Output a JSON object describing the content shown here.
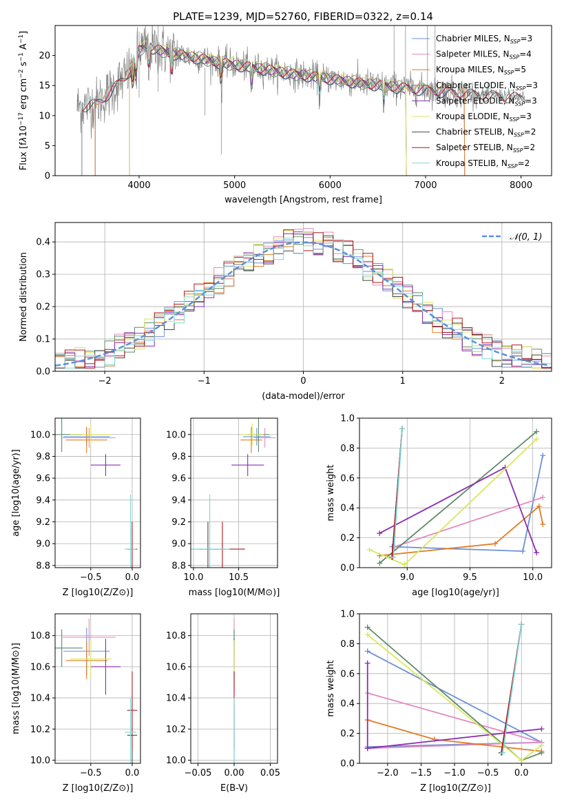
{
  "figure": {
    "title": "PLATE=1239, MJD=52760, FIBERID=0322, z=0.14"
  },
  "colors": {
    "Chabrier MILES": "#6a8fd8",
    "Salpeter MILES": "#e08abf",
    "Kroupa MILES": "#e07b20",
    "Chabrier ELODIE": "#5e8a66",
    "Salpeter ELODIE": "#8a2bb0",
    "Kroupa ELODIE": "#d8e85a",
    "Chabrier STELIB": "#444444",
    "Salpeter STELIB": "#b01818",
    "Kroupa STELIB": "#7fd6d6",
    "data": "#7f7f7f"
  },
  "chart_data": [
    {
      "id": "spectrum",
      "type": "line",
      "title": "",
      "xlabel": "wavelength [Angstrom, rest frame]",
      "ylabel": "Flux [f_λ 10^-17 erg cm^-2 s^-1 A^-1]",
      "xlim": [
        3120,
        8320
      ],
      "ylim": [
        0,
        25
      ],
      "xticks": [
        4000,
        5000,
        6000,
        7000,
        8000
      ],
      "yticks": [
        0,
        5,
        10,
        15,
        20
      ],
      "grid": false,
      "legend_position": "top-right",
      "legend": [
        {
          "name": "Chabrier MILES",
          "nssp": "3"
        },
        {
          "name": "Salpeter MILES",
          "nssp": "4"
        },
        {
          "name": "Kroupa MILES",
          "nssp": "5"
        },
        {
          "name": "Chabrier ELODIE",
          "nssp": "3"
        },
        {
          "name": "Salpeter ELODIE",
          "nssp": "3"
        },
        {
          "name": "Kroupa ELODIE",
          "nssp": "3"
        },
        {
          "name": "Chabrier STELIB",
          "nssp": "2"
        },
        {
          "name": "Salpeter STELIB",
          "nssp": "2"
        },
        {
          "name": "Kroupa STELIB",
          "nssp": "2"
        }
      ],
      "continuum": {
        "x": [
          3350,
          3550,
          3700,
          3850,
          3950,
          4000,
          4100,
          4300,
          4500,
          4800,
          5000,
          5300,
          5600,
          6000,
          6400,
          6800,
          7200,
          7500,
          7800,
          8000
        ],
        "y": [
          11.5,
          12.0,
          14.0,
          16.5,
          18.5,
          21.0,
          21.5,
          20.5,
          20.0,
          19.0,
          18.5,
          17.8,
          17.0,
          16.2,
          15.3,
          14.6,
          14.0,
          13.6,
          13.3,
          13.0
        ]
      },
      "model_cutoffs": [
        {
          "name": "Chabrier MILES",
          "range": [
            3540,
            7410
          ]
        },
        {
          "name": "Salpeter MILES",
          "range": [
            3540,
            7410
          ]
        },
        {
          "name": "Kroupa MILES",
          "range": [
            3540,
            7410
          ]
        },
        {
          "name": "Chabrier ELODIE",
          "range": [
            3900,
            6800
          ]
        },
        {
          "name": "Salpeter ELODIE",
          "range": [
            3900,
            6800
          ]
        },
        {
          "name": "Kroupa ELODIE",
          "range": [
            3900,
            6800
          ]
        },
        {
          "name": "Chabrier STELIB",
          "range": [
            3400,
            8050
          ]
        },
        {
          "name": "Salpeter STELIB",
          "range": [
            3400,
            8050
          ]
        },
        {
          "name": "Kroupa STELIB",
          "range": [
            3400,
            8050
          ]
        }
      ]
    },
    {
      "id": "residuals",
      "type": "line",
      "xlabel": "(data-model)/error",
      "ylabel": "Normed distribution",
      "xlim": [
        -2.5,
        2.5
      ],
      "ylim": [
        0,
        0.46
      ],
      "xticks": [
        -2,
        -1,
        0,
        1,
        2
      ],
      "yticks": [
        0.0,
        0.1,
        0.2,
        0.3,
        0.4
      ],
      "grid": true,
      "legend_position": "top-right",
      "gaussian_label": "𝒩(0, 1)"
    },
    {
      "id": "age-vs-Z",
      "type": "scatter",
      "xlabel": "Z [log10(Z/Z⊙)]",
      "ylabel": "age [log10(age/yr)]",
      "xlim": [
        -0.93,
        0.1
      ],
      "ylim": [
        8.78,
        10.15
      ],
      "xticks": [
        -0.5,
        0.0
      ],
      "yticks": [
        8.8,
        9.0,
        9.2,
        9.4,
        9.6,
        9.8,
        10.0
      ],
      "grid": true,
      "points": [
        {
          "series": "Chabrier MILES",
          "x": -0.55,
          "y": 9.98,
          "xerr": 0.28,
          "yerr": 0.08
        },
        {
          "series": "Salpeter MILES",
          "x": -0.52,
          "y": 9.97,
          "xerr": 0.32,
          "yerr": 0.09
        },
        {
          "series": "Kroupa MILES",
          "x": -0.55,
          "y": 9.95,
          "xerr": 0.25,
          "yerr": 0.12
        },
        {
          "series": "Chabrier ELODIE",
          "x": -0.85,
          "y": 10.0,
          "xerr": 0.25,
          "yerr": 0.16
        },
        {
          "series": "Salpeter ELODIE",
          "x": -0.32,
          "y": 9.72,
          "xerr": 0.18,
          "yerr": 0.1
        },
        {
          "series": "Kroupa ELODIE",
          "x": -0.5,
          "y": 10.0,
          "xerr": 0.25,
          "yerr": 0.1
        },
        {
          "series": "Chabrier STELIB",
          "x": 0.0,
          "y": 8.95,
          "xerr": 0.06,
          "yerr": 0.25
        },
        {
          "series": "Salpeter STELIB",
          "x": 0.0,
          "y": 8.95,
          "xerr": 0.06,
          "yerr": 0.25
        },
        {
          "series": "Kroupa STELIB",
          "x": -0.02,
          "y": 8.95,
          "xerr": 0.07,
          "yerr": 0.5
        }
      ]
    },
    {
      "id": "age-vs-mass",
      "type": "scatter",
      "xlabel": "mass [log10(M/M⊙)]",
      "ylabel": "",
      "xlim": [
        9.97,
        10.93
      ],
      "ylim": [
        8.78,
        10.15
      ],
      "xticks": [
        10.0,
        10.5
      ],
      "yticks": [
        8.8,
        9.0,
        9.2,
        9.4,
        9.6,
        9.8,
        10.0
      ],
      "grid": true,
      "points": [
        {
          "series": "Chabrier MILES",
          "x": 10.7,
          "y": 9.98,
          "xerr": 0.15,
          "yerr": 0.08
        },
        {
          "series": "Salpeter MILES",
          "x": 10.79,
          "y": 9.97,
          "xerr": 0.12,
          "yerr": 0.09
        },
        {
          "series": "Kroupa MILES",
          "x": 10.64,
          "y": 9.95,
          "xerr": 0.12,
          "yerr": 0.12
        },
        {
          "series": "Chabrier ELODIE",
          "x": 10.72,
          "y": 10.0,
          "xerr": 0.12,
          "yerr": 0.16
        },
        {
          "series": "Salpeter ELODIE",
          "x": 10.6,
          "y": 9.72,
          "xerr": 0.18,
          "yerr": 0.1
        },
        {
          "series": "Kroupa ELODIE",
          "x": 10.65,
          "y": 10.0,
          "xerr": 0.12,
          "yerr": 0.1
        },
        {
          "series": "Chabrier STELIB",
          "x": 10.16,
          "y": 8.95,
          "xerr": 0.2,
          "yerr": 0.25
        },
        {
          "series": "Salpeter STELIB",
          "x": 10.32,
          "y": 8.95,
          "xerr": 0.25,
          "yerr": 0.25
        },
        {
          "series": "Kroupa STELIB",
          "x": 10.18,
          "y": 8.95,
          "xerr": 0.22,
          "yerr": 0.5
        }
      ]
    },
    {
      "id": "weight-vs-age",
      "type": "line",
      "xlabel": "age [log10(age/yr)]",
      "ylabel": "mass weight",
      "xlim": [
        8.62,
        10.15
      ],
      "ylim": [
        0,
        1.0
      ],
      "xticks": [
        9.0,
        9.5,
        10.0
      ],
      "yticks": [
        0.0,
        0.2,
        0.4,
        0.6,
        0.8,
        1.0
      ],
      "grid": true,
      "series": [
        {
          "name": "Chabrier MILES",
          "x": [
            8.88,
            9.92,
            10.08
          ],
          "y": [
            0.14,
            0.11,
            0.75
          ]
        },
        {
          "name": "Salpeter MILES",
          "x": [
            8.9,
            10.08
          ],
          "y": [
            0.14,
            0.47
          ]
        },
        {
          "name": "Kroupa MILES",
          "x": [
            8.78,
            9.7,
            10.05,
            10.08
          ],
          "y": [
            0.08,
            0.16,
            0.41,
            0.29
          ]
        },
        {
          "name": "Chabrier ELODIE",
          "x": [
            8.78,
            10.03
          ],
          "y": [
            0.03,
            0.91
          ]
        },
        {
          "name": "Salpeter ELODIE",
          "x": [
            8.78,
            9.78,
            10.03
          ],
          "y": [
            0.23,
            0.67,
            0.1
          ]
        },
        {
          "name": "Kroupa ELODIE",
          "x": [
            8.7,
            8.98,
            10.03
          ],
          "y": [
            0.12,
            0.02,
            0.86
          ]
        },
        {
          "name": "Chabrier STELIB",
          "x": [
            8.88,
            8.96
          ],
          "y": [
            0.07,
            0.93
          ]
        },
        {
          "name": "Salpeter STELIB",
          "x": [
            8.88,
            8.96
          ],
          "y": [
            0.07,
            0.93
          ]
        },
        {
          "name": "Kroupa STELIB",
          "x": [
            8.89,
            8.96
          ],
          "y": [
            0.07,
            0.93
          ]
        }
      ]
    },
    {
      "id": "mass-vs-Z",
      "type": "scatter",
      "xlabel": "Z [log10(Z/Z⊙)]",
      "ylabel": "mass [log10(M/M⊙)]",
      "xlim": [
        -0.93,
        0.1
      ],
      "ylim": [
        9.98,
        10.94
      ],
      "xticks": [
        -0.5,
        0.0
      ],
      "yticks": [
        10.0,
        10.2,
        10.4,
        10.6,
        10.8
      ],
      "grid": true,
      "points": [
        {
          "series": "Chabrier MILES",
          "x": -0.55,
          "y": 10.7,
          "xerr": 0.28,
          "yerr": 0.15
        },
        {
          "series": "Salpeter MILES",
          "x": -0.52,
          "y": 10.79,
          "xerr": 0.32,
          "yerr": 0.12
        },
        {
          "series": "Kroupa MILES",
          "x": -0.55,
          "y": 10.64,
          "xerr": 0.25,
          "yerr": 0.12
        },
        {
          "series": "Chabrier ELODIE",
          "x": -0.85,
          "y": 10.72,
          "xerr": 0.25,
          "yerr": 0.12
        },
        {
          "series": "Salpeter ELODIE",
          "x": -0.32,
          "y": 10.6,
          "xerr": 0.18,
          "yerr": 0.18
        },
        {
          "series": "Kroupa ELODIE",
          "x": -0.5,
          "y": 10.65,
          "xerr": 0.25,
          "yerr": 0.12
        },
        {
          "series": "Chabrier STELIB",
          "x": 0.0,
          "y": 10.16,
          "xerr": 0.06,
          "yerr": 0.2
        },
        {
          "series": "Salpeter STELIB",
          "x": 0.0,
          "y": 10.32,
          "xerr": 0.06,
          "yerr": 0.25
        },
        {
          "series": "Kroupa STELIB",
          "x": -0.02,
          "y": 10.18,
          "xerr": 0.07,
          "yerr": 0.22
        }
      ]
    },
    {
      "id": "mass-vs-ebv",
      "type": "scatter",
      "xlabel": "E(B-V)",
      "ylabel": "",
      "xlim": [
        -0.06,
        0.06
      ],
      "ylim": [
        9.98,
        10.94
      ],
      "xticks": [
        -0.05,
        0.0,
        0.05
      ],
      "yticks": [
        10.0,
        10.2,
        10.4,
        10.6,
        10.8
      ],
      "grid": true,
      "points": [
        {
          "series": "Chabrier MILES",
          "x": 0.0,
          "y": 10.7,
          "xerr": 0.0,
          "yerr": 0.15
        },
        {
          "series": "Salpeter MILES",
          "x": 0.0,
          "y": 10.79,
          "xerr": 0.0,
          "yerr": 0.12
        },
        {
          "series": "Kroupa MILES",
          "x": 0.0,
          "y": 10.64,
          "xerr": 0.0,
          "yerr": 0.12
        },
        {
          "series": "Chabrier ELODIE",
          "x": 0.0,
          "y": 10.72,
          "xerr": 0.0,
          "yerr": 0.12
        },
        {
          "series": "Salpeter ELODIE",
          "x": 0.0,
          "y": 10.6,
          "xerr": 0.0,
          "yerr": 0.18
        },
        {
          "series": "Kroupa ELODIE",
          "x": 0.0,
          "y": 10.65,
          "xerr": 0.0,
          "yerr": 0.12
        },
        {
          "series": "Chabrier STELIB",
          "x": 0.0,
          "y": 10.16,
          "xerr": 0.0,
          "yerr": 0.2
        },
        {
          "series": "Salpeter STELIB",
          "x": 0.0,
          "y": 10.32,
          "xerr": 0.0,
          "yerr": 0.25
        },
        {
          "series": "Kroupa STELIB",
          "x": 0.0,
          "y": 10.18,
          "xerr": 0.0,
          "yerr": 0.22
        }
      ]
    },
    {
      "id": "weight-vs-Z",
      "type": "line",
      "xlabel": "Z [log10(Z/Z⊙)]",
      "ylabel": "mass weight",
      "xlim": [
        -2.42,
        0.45
      ],
      "ylim": [
        0,
        1.0
      ],
      "xticks": [
        -2.0,
        -1.5,
        -1.0,
        -0.5,
        0.0
      ],
      "yticks": [
        0.0,
        0.2,
        0.4,
        0.6,
        0.8,
        1.0
      ],
      "grid": true,
      "series": [
        {
          "name": "Chabrier MILES",
          "x": [
            -2.3,
            0.3,
            -2.3
          ],
          "y": [
            0.11,
            0.14,
            0.75
          ]
        },
        {
          "name": "Salpeter MILES",
          "x": [
            -2.3,
            0.3,
            -2.3
          ],
          "y": [
            0.1,
            0.14,
            0.47
          ]
        },
        {
          "name": "Kroupa MILES",
          "x": [
            -2.3,
            -1.3,
            0.3
          ],
          "y": [
            0.29,
            0.16,
            0.08
          ]
        },
        {
          "name": "Chabrier ELODIE",
          "x": [
            -2.3,
            0.0,
            0.3
          ],
          "y": [
            0.91,
            0.02,
            0.07
          ]
        },
        {
          "name": "Salpeter ELODIE",
          "x": [
            -2.3,
            -2.3,
            0.3
          ],
          "y": [
            0.67,
            0.1,
            0.23
          ]
        },
        {
          "name": "Kroupa ELODIE",
          "x": [
            -2.3,
            0.0,
            0.3
          ],
          "y": [
            0.86,
            0.02,
            0.12
          ]
        },
        {
          "name": "Chabrier STELIB",
          "x": [
            -0.3,
            0.0
          ],
          "y": [
            0.07,
            0.93
          ]
        },
        {
          "name": "Salpeter STELIB",
          "x": [
            -0.3,
            0.0
          ],
          "y": [
            0.07,
            0.93
          ]
        },
        {
          "name": "Kroupa STELIB",
          "x": [
            -0.28,
            0.0
          ],
          "y": [
            0.07,
            0.93
          ]
        }
      ]
    }
  ]
}
